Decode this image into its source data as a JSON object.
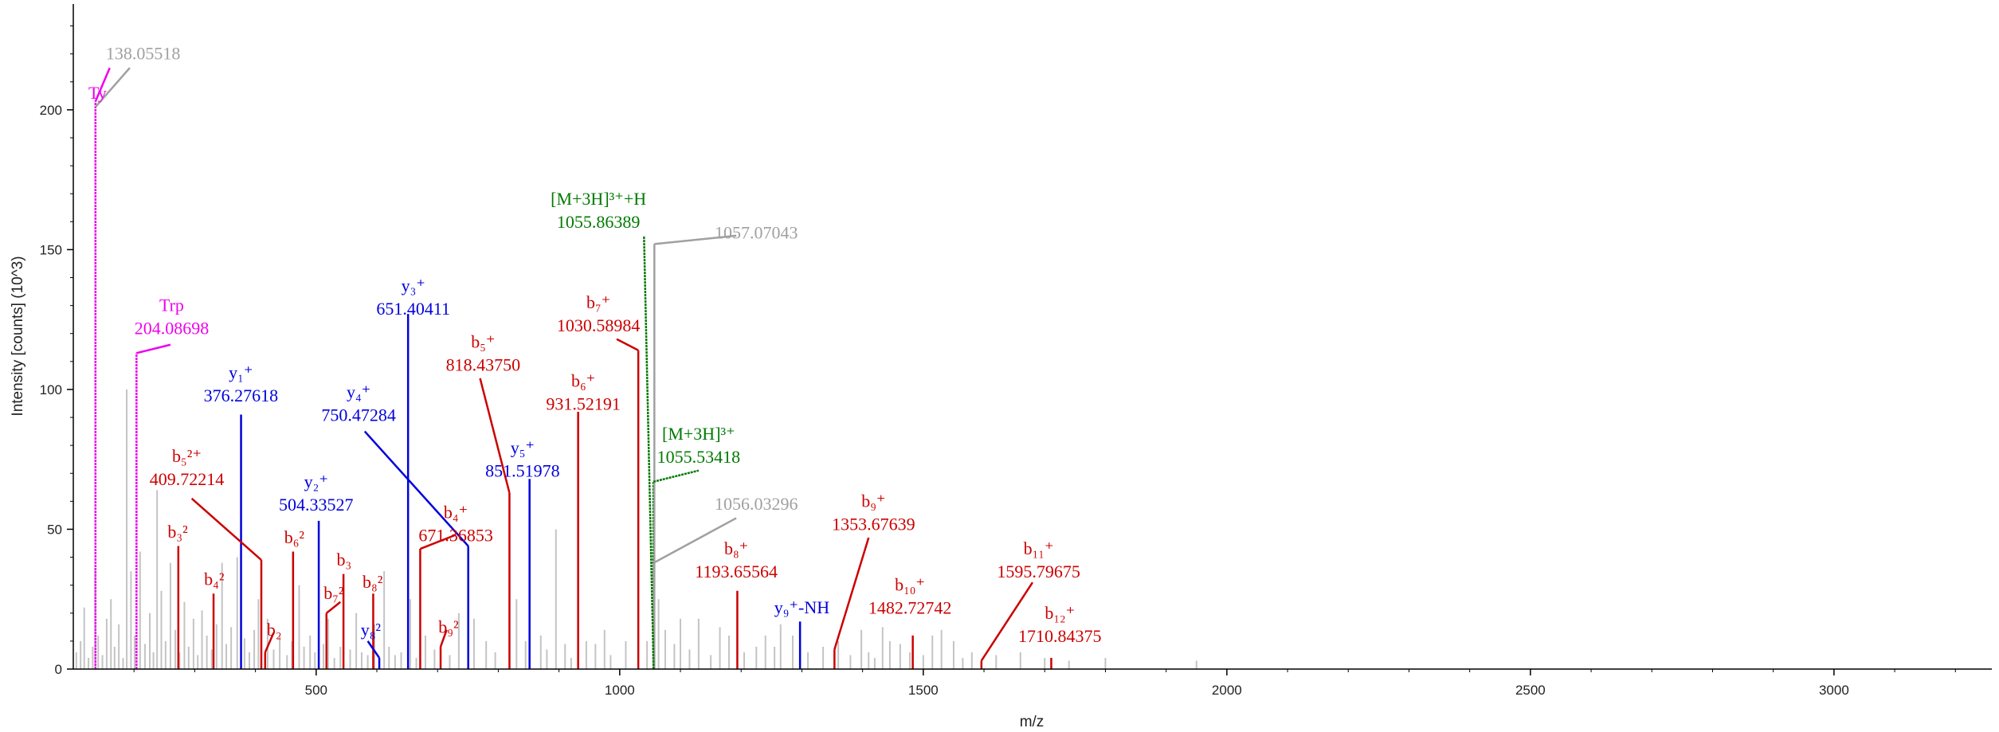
{
  "chart_data": {
    "type": "bar",
    "title": "",
    "xlabel": "m/z",
    "ylabel": "Intensity [counts] (10^3)",
    "xlim": [
      100,
      3260
    ],
    "ylim": [
      0,
      235
    ],
    "x_ticks": [
      "500",
      "1000",
      "1500",
      "2000",
      "2500",
      "3000"
    ],
    "y_ticks": [
      "0",
      "50",
      "100",
      "150",
      "200"
    ],
    "colors": {
      "unassigned": "#c4c4c4",
      "b_ion": "#cc0000",
      "y_ion": "#0000dd",
      "precursor": "#007a00",
      "immonium": "#ee00ee",
      "note": "#a0a0a0",
      "axis": "#000000"
    },
    "background_peaks": [
      [
        105,
        6
      ],
      [
        112,
        10
      ],
      [
        118,
        22
      ],
      [
        125,
        4
      ],
      [
        132,
        8
      ],
      [
        136,
        36
      ],
      [
        141,
        12
      ],
      [
        148,
        5
      ],
      [
        155,
        18
      ],
      [
        162,
        25
      ],
      [
        168,
        8
      ],
      [
        175,
        16
      ],
      [
        182,
        4
      ],
      [
        188,
        100
      ],
      [
        195,
        35
      ],
      [
        201,
        12
      ],
      [
        210,
        42
      ],
      [
        218,
        9
      ],
      [
        226,
        20
      ],
      [
        232,
        6
      ],
      [
        238,
        64
      ],
      [
        245,
        28
      ],
      [
        252,
        10
      ],
      [
        260,
        38
      ],
      [
        268,
        14
      ],
      [
        275,
        6
      ],
      [
        283,
        24
      ],
      [
        290,
        8
      ],
      [
        298,
        18
      ],
      [
        305,
        5
      ],
      [
        312,
        21
      ],
      [
        320,
        12
      ],
      [
        328,
        7
      ],
      [
        336,
        16
      ],
      [
        345,
        38
      ],
      [
        352,
        9
      ],
      [
        360,
        15
      ],
      [
        370,
        40
      ],
      [
        382,
        11
      ],
      [
        390,
        6
      ],
      [
        398,
        14
      ],
      [
        405,
        25
      ],
      [
        420,
        18
      ],
      [
        430,
        7
      ],
      [
        440,
        12
      ],
      [
        452,
        5
      ],
      [
        460,
        10
      ],
      [
        472,
        30
      ],
      [
        480,
        8
      ],
      [
        490,
        12
      ],
      [
        498,
        6
      ],
      [
        512,
        9
      ],
      [
        520,
        18
      ],
      [
        530,
        4
      ],
      [
        540,
        8
      ],
      [
        556,
        7
      ],
      [
        566,
        20
      ],
      [
        575,
        6
      ],
      [
        585,
        5
      ],
      [
        596,
        16
      ],
      [
        612,
        35
      ],
      [
        620,
        8
      ],
      [
        630,
        5
      ],
      [
        640,
        6
      ],
      [
        655,
        25
      ],
      [
        665,
        4
      ],
      [
        680,
        12
      ],
      [
        695,
        7
      ],
      [
        705,
        8
      ],
      [
        720,
        5
      ],
      [
        735,
        20
      ],
      [
        760,
        18
      ],
      [
        780,
        10
      ],
      [
        795,
        6
      ],
      [
        830,
        25
      ],
      [
        845,
        10
      ],
      [
        870,
        12
      ],
      [
        880,
        7
      ],
      [
        895,
        50
      ],
      [
        910,
        9
      ],
      [
        920,
        4
      ],
      [
        945,
        10
      ],
      [
        960,
        9
      ],
      [
        975,
        14
      ],
      [
        985,
        5
      ],
      [
        1010,
        10
      ],
      [
        1045,
        10
      ],
      [
        1064,
        25
      ],
      [
        1075,
        14
      ],
      [
        1090,
        9
      ],
      [
        1100,
        18
      ],
      [
        1115,
        7
      ],
      [
        1130,
        18
      ],
      [
        1150,
        5
      ],
      [
        1165,
        15
      ],
      [
        1180,
        12
      ],
      [
        1205,
        6
      ],
      [
        1225,
        8
      ],
      [
        1240,
        12
      ],
      [
        1255,
        8
      ],
      [
        1265,
        16
      ],
      [
        1285,
        12
      ],
      [
        1310,
        6
      ],
      [
        1335,
        8
      ],
      [
        1360,
        10
      ],
      [
        1380,
        5
      ],
      [
        1398,
        14
      ],
      [
        1410,
        6
      ],
      [
        1420,
        4
      ],
      [
        1433,
        15
      ],
      [
        1445,
        10
      ],
      [
        1462,
        9
      ],
      [
        1478,
        6
      ],
      [
        1500,
        5
      ],
      [
        1515,
        12
      ],
      [
        1530,
        14
      ],
      [
        1550,
        10
      ],
      [
        1565,
        4
      ],
      [
        1580,
        6
      ],
      [
        1620,
        5
      ],
      [
        1660,
        6
      ],
      [
        1700,
        4
      ],
      [
        1740,
        3
      ],
      [
        1800,
        4
      ],
      [
        1950,
        3
      ]
    ],
    "assigned_peaks": [
      {
        "mz": 136.5,
        "intensity": 203,
        "category": "immonium",
        "lx": 136.5,
        "ly": 203,
        "tx": 160,
        "ty": 215
      },
      {
        "mz": 204.09,
        "intensity": 113,
        "category": "immonium",
        "lx": 204,
        "ly": 113,
        "tx": 260,
        "ty": 116
      },
      {
        "mz": 376.3,
        "intensity": 91,
        "category": "y_ion"
      },
      {
        "mz": 504.3,
        "intensity": 53,
        "category": "y_ion"
      },
      {
        "mz": 651.4,
        "intensity": 127,
        "category": "y_ion"
      },
      {
        "mz": 750.5,
        "intensity": 44,
        "category": "y_ion",
        "lx": 750.5,
        "ly": 44,
        "tx": 580,
        "ty": 85
      },
      {
        "mz": 851.5,
        "intensity": 68,
        "category": "y_ion"
      },
      {
        "mz": 1297,
        "intensity": 17,
        "category": "y_ion"
      },
      {
        "mz": 604,
        "intensity": 4,
        "category": "y_ion",
        "lx": 604,
        "ly": 4,
        "tx": 585,
        "ty": 10
      },
      {
        "mz": 409.7,
        "intensity": 39,
        "category": "b_ion",
        "lx": 409.7,
        "ly": 39,
        "tx": 295,
        "ty": 61
      },
      {
        "mz": 273,
        "intensity": 44,
        "category": "b_ion"
      },
      {
        "mz": 331,
        "intensity": 27,
        "category": "b_ion"
      },
      {
        "mz": 416,
        "intensity": 6,
        "category": "b_ion",
        "lx": 416,
        "ly": 6,
        "tx": 430,
        "ty": 13
      },
      {
        "mz": 462,
        "intensity": 42,
        "category": "b_ion"
      },
      {
        "mz": 517,
        "intensity": 20,
        "category": "b_ion",
        "lx": 517,
        "ly": 20,
        "tx": 540,
        "ty": 24
      },
      {
        "mz": 545,
        "intensity": 34,
        "category": "b_ion"
      },
      {
        "mz": 594,
        "intensity": 27,
        "category": "b_ion"
      },
      {
        "mz": 671.4,
        "intensity": 43,
        "category": "b_ion",
        "lx": 671.4,
        "ly": 43,
        "tx": 730,
        "ty": 48
      },
      {
        "mz": 705,
        "intensity": 8,
        "category": "b_ion",
        "lx": 705,
        "ly": 8,
        "tx": 715,
        "ty": 14
      },
      {
        "mz": 818.4,
        "intensity": 63,
        "category": "b_ion",
        "lx": 818.4,
        "ly": 63,
        "tx": 770,
        "ty": 104
      },
      {
        "mz": 931.5,
        "intensity": 92,
        "category": "b_ion"
      },
      {
        "mz": 1030.6,
        "intensity": 114,
        "category": "b_ion",
        "lx": 1030.6,
        "ly": 114,
        "tx": 995,
        "ty": 118
      },
      {
        "mz": 1193.7,
        "intensity": 28,
        "category": "b_ion"
      },
      {
        "mz": 1353.7,
        "intensity": 7,
        "category": "b_ion",
        "lx": 1353.7,
        "ly": 7,
        "tx": 1410,
        "ty": 47
      },
      {
        "mz": 1482.7,
        "intensity": 12,
        "category": "b_ion"
      },
      {
        "mz": 1595.8,
        "intensity": 3,
        "category": "b_ion",
        "lx": 1595.8,
        "ly": 3,
        "tx": 1680,
        "ty": 31
      },
      {
        "mz": 1710.8,
        "intensity": 4,
        "category": "b_ion"
      },
      {
        "mz": 1055.86,
        "intensity": 0,
        "category": "precursor",
        "lx": 1055.86,
        "ly": 0,
        "tx": 1040,
        "ty": 155
      },
      {
        "mz": 1055.53,
        "intensity": 67,
        "category": "precursor",
        "lx": 1055.53,
        "ly": 67,
        "tx": 1130,
        "ty": 71
      },
      {
        "mz": 1057.07,
        "intensity": 152,
        "category": "note",
        "lx": 1057.07,
        "ly": 152,
        "tx": 1192,
        "ty": 155
      },
      {
        "mz": 1056.03,
        "intensity": 38,
        "category": "note",
        "lx": 1056.03,
        "ly": 38,
        "tx": 1192,
        "ty": 54
      },
      {
        "mz": 136.5,
        "intensity": 0,
        "category": "note",
        "lx": 136.5,
        "ly": 201,
        "tx": 193,
        "ty": 215
      }
    ],
    "labels": [
      {
        "lines": [
          "138.05518"
        ],
        "category": "note",
        "mz": 215,
        "level": 218
      },
      {
        "lines": [
          "Ty"
        ],
        "category": "immonium",
        "mz": 140,
        "level": 204
      },
      {
        "lines": [
          "Trp",
          "204.08698"
        ],
        "category": "immonium",
        "mz": 262,
        "level": 128
      },
      {
        "lines": [
          "y₁⁺",
          "376.27618"
        ],
        "category": "y_ion",
        "mz": 376,
        "level": 104
      },
      {
        "lines": [
          "y₂⁺",
          "504.33527"
        ],
        "category": "y_ion",
        "mz": 500,
        "level": 65
      },
      {
        "lines": [
          "y₃⁺",
          "651.40411"
        ],
        "category": "y_ion",
        "mz": 660,
        "level": 135
      },
      {
        "lines": [
          "y₄⁺",
          "750.47284"
        ],
        "category": "y_ion",
        "mz": 570,
        "level": 97
      },
      {
        "lines": [
          "y₅⁺",
          "851.51978"
        ],
        "category": "y_ion",
        "mz": 840,
        "level": 77
      },
      {
        "lines": [
          "y₉⁺-NH"
        ],
        "category": "y_ion",
        "mz": 1300,
        "level": 20
      },
      {
        "lines": [
          "y₈²"
        ],
        "category": "y_ion",
        "mz": 590,
        "level": 12
      },
      {
        "lines": [
          "b₅²⁺",
          "409.72214"
        ],
        "category": "b_ion",
        "mz": 287,
        "level": 74
      },
      {
        "lines": [
          "b₃²"
        ],
        "category": "b_ion",
        "mz": 272,
        "level": 47
      },
      {
        "lines": [
          "b₄²"
        ],
        "category": "b_ion",
        "mz": 332,
        "level": 30
      },
      {
        "lines": [
          "b₂"
        ],
        "category": "b_ion",
        "mz": 431,
        "level": 12
      },
      {
        "lines": [
          "b₆²"
        ],
        "category": "b_ion",
        "mz": 464,
        "level": 45
      },
      {
        "lines": [
          "b₃"
        ],
        "category": "b_ion",
        "mz": 546,
        "level": 37
      },
      {
        "lines": [
          "b₇²"
        ],
        "category": "b_ion",
        "mz": 529,
        "level": 25
      },
      {
        "lines": [
          "b₈²"
        ],
        "category": "b_ion",
        "mz": 593,
        "level": 29
      },
      {
        "lines": [
          "b₄⁺",
          "671.36853"
        ],
        "category": "b_ion",
        "mz": 730,
        "level": 54
      },
      {
        "lines": [
          "b₉²"
        ],
        "category": "b_ion",
        "mz": 718,
        "level": 13
      },
      {
        "lines": [
          "b₅⁺",
          "818.43750"
        ],
        "category": "b_ion",
        "mz": 775,
        "level": 115
      },
      {
        "lines": [
          "b₇⁺",
          "1030.58984"
        ],
        "category": "b_ion",
        "mz": 965,
        "level": 129
      },
      {
        "lines": [
          "b₆⁺",
          "931.52191"
        ],
        "category": "b_ion",
        "mz": 940,
        "level": 101
      },
      {
        "lines": [
          "b₈⁺",
          "1193.65564"
        ],
        "category": "b_ion",
        "mz": 1192,
        "level": 41
      },
      {
        "lines": [
          "b₉⁺",
          "1353.67639"
        ],
        "category": "b_ion",
        "mz": 1418,
        "level": 58
      },
      {
        "lines": [
          "b₁₀⁺",
          "1482.72742"
        ],
        "category": "b_ion",
        "mz": 1478,
        "level": 28
      },
      {
        "lines": [
          "b₁₁⁺",
          "1595.79675"
        ],
        "category": "b_ion",
        "mz": 1690,
        "level": 41
      },
      {
        "lines": [
          "b₁₂⁺",
          "1710.84375"
        ],
        "category": "b_ion",
        "mz": 1725,
        "level": 18
      },
      {
        "lines": [
          "[M+3H]³⁺+H",
          "1055.86389"
        ],
        "category": "precursor",
        "mz": 965,
        "level": 166
      },
      {
        "lines": [
          "[M+3H]³⁺",
          "1055.53418"
        ],
        "category": "precursor",
        "mz": 1130,
        "level": 82
      },
      {
        "lines": [
          "1057.07043"
        ],
        "category": "note",
        "mz": 1225,
        "level": 154
      },
      {
        "lines": [
          "1056.03296"
        ],
        "category": "note",
        "mz": 1225,
        "level": 57
      }
    ]
  }
}
